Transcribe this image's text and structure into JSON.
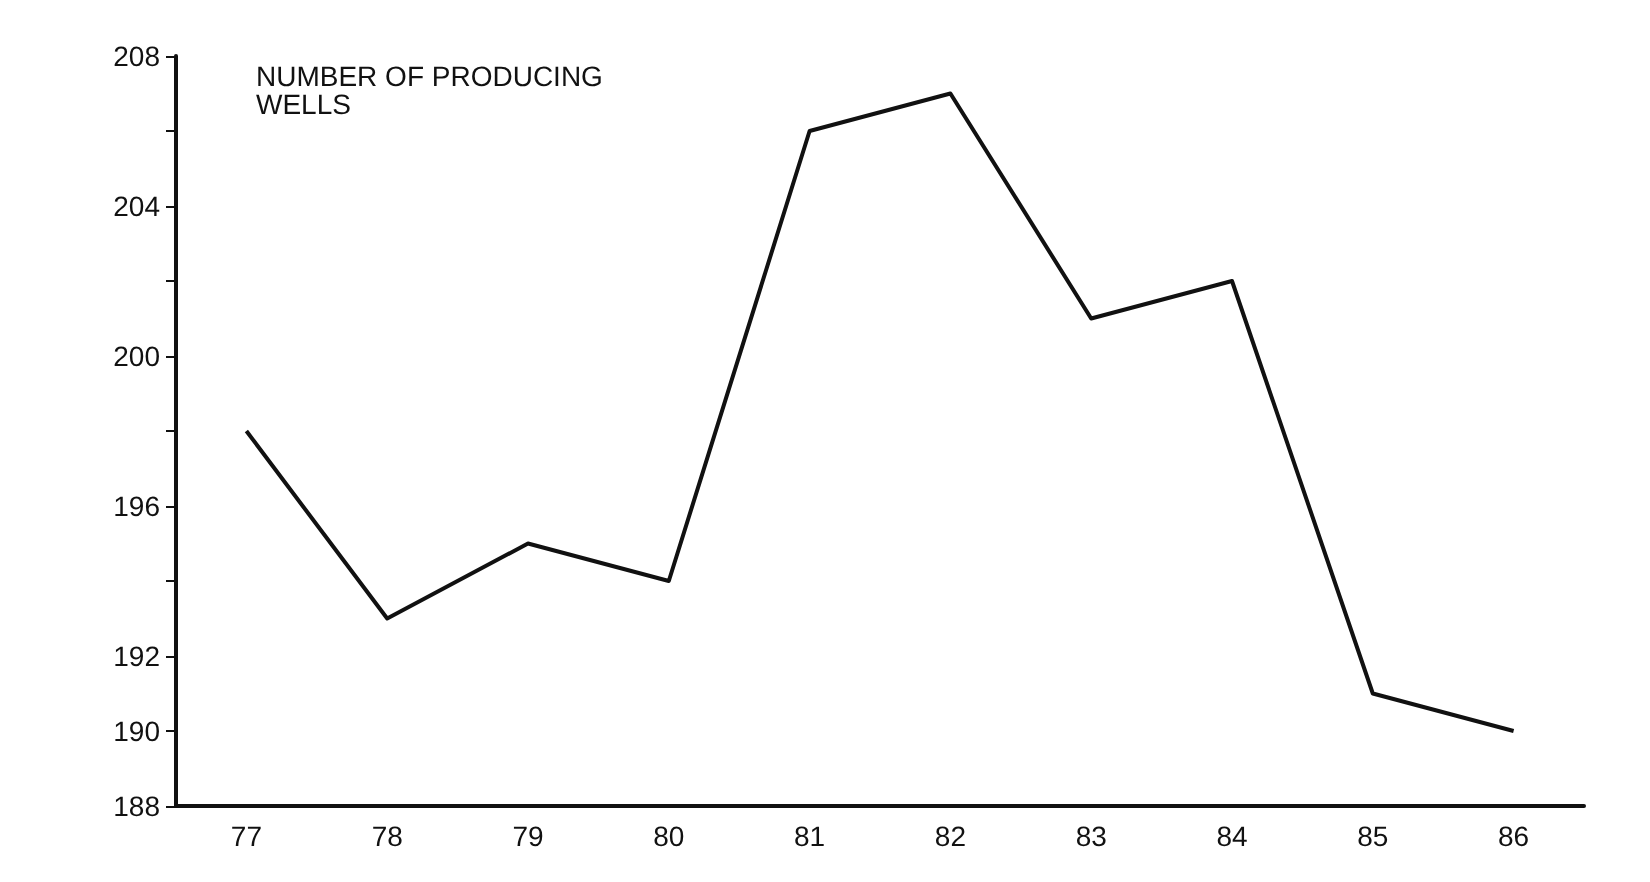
{
  "chart_data": {
    "type": "line",
    "title": "NUMBER OF PRODUCING WELLS",
    "categories": [
      "77",
      "78",
      "79",
      "80",
      "81",
      "82",
      "83",
      "84",
      "85",
      "86"
    ],
    "series": [
      {
        "color": "#111111",
        "values": [
          198,
          193,
          195,
          194,
          206,
          207,
          201,
          202,
          191,
          190
        ]
      }
    ],
    "ylim": [
      188,
      208
    ],
    "yticks": [
      188,
      190,
      192,
      {
        "value": 194,
        "label": null
      },
      196,
      {
        "value": 198,
        "label": null
      },
      200,
      {
        "value": 202,
        "label": null
      },
      204,
      {
        "value": 206,
        "label": null
      },
      208
    ],
    "grid": false,
    "marker": "none",
    "line_style": "solid"
  }
}
